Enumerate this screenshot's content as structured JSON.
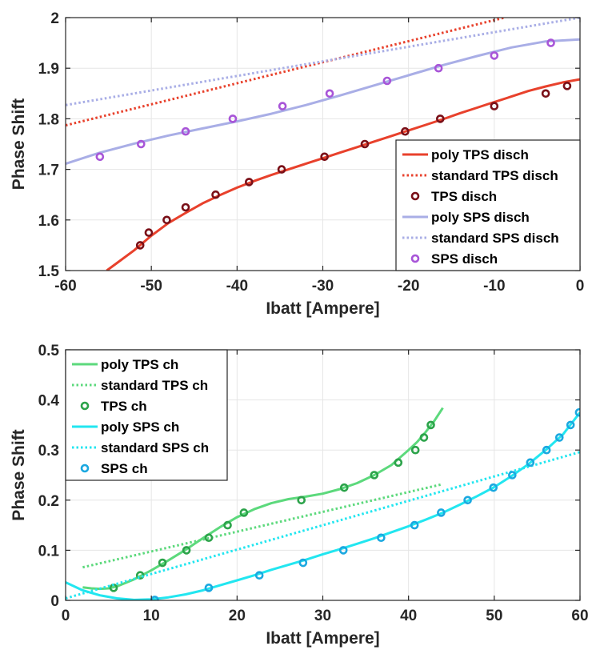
{
  "chart_data": [
    {
      "type": "line",
      "xlabel": "Ibatt [Ampere]",
      "ylabel": "Phase Shift",
      "xlim": [
        -60,
        0
      ],
      "ylim": [
        1.5,
        2.0
      ],
      "xticks": [
        -60,
        -50,
        -40,
        -30,
        -20,
        -10,
        0
      ],
      "yticks": [
        1.5,
        1.6,
        1.7,
        1.8,
        1.9,
        2.0
      ],
      "xtick_labels": [
        "-60",
        "-50",
        "-40",
        "-30",
        "-20",
        "-10",
        "0"
      ],
      "ytick_labels": [
        "1.5",
        "1.6",
        "1.7",
        "1.8",
        "1.9",
        "2"
      ],
      "grid": true,
      "legend_position": "bottom-right",
      "series": [
        {
          "name": "poly TPS disch",
          "kind": "line",
          "style": "solid",
          "color": "#e8412c",
          "x": [
            -55.2,
            -54,
            -52,
            -50,
            -48,
            -46,
            -44,
            -42,
            -40,
            -38,
            -36,
            -34,
            -32,
            -30,
            -28,
            -26,
            -24,
            -22,
            -20,
            -18,
            -16,
            -14,
            -12,
            -10,
            -8,
            -6,
            -4,
            -2,
            0
          ],
          "y": [
            1.5,
            1.515,
            1.54,
            1.569,
            1.594,
            1.614,
            1.633,
            1.649,
            1.664,
            1.677,
            1.689,
            1.7,
            1.711,
            1.722,
            1.733,
            1.744,
            1.755,
            1.766,
            1.777,
            1.788,
            1.799,
            1.811,
            1.822,
            1.833,
            1.844,
            1.855,
            1.864,
            1.872,
            1.878
          ]
        },
        {
          "name": "standard TPS disch",
          "kind": "line",
          "style": "dotted",
          "color": "#e8412c",
          "x": [
            -60,
            -8.8
          ],
          "y": [
            1.787,
            2.0
          ]
        },
        {
          "name": "TPS disch",
          "kind": "markers",
          "color": "#7a1018",
          "x": [
            -51.3,
            -50.3,
            -48.2,
            -46,
            -42.5,
            -38.6,
            -34.8,
            -29.8,
            -25.1,
            -20.4,
            -16.3,
            -10,
            -4,
            -1.5
          ],
          "y": [
            1.55,
            1.575,
            1.6,
            1.625,
            1.65,
            1.675,
            1.7,
            1.725,
            1.75,
            1.775,
            1.8,
            1.825,
            1.85,
            1.865
          ]
        },
        {
          "name": "poly SPS disch",
          "kind": "line",
          "style": "solid",
          "color": "#a9aee6",
          "x": [
            -60,
            -56,
            -52,
            -48,
            -44,
            -40,
            -36,
            -32,
            -28,
            -24,
            -20,
            -16,
            -12,
            -8,
            -4,
            0
          ],
          "y": [
            1.711,
            1.733,
            1.751,
            1.767,
            1.781,
            1.795,
            1.81,
            1.827,
            1.846,
            1.866,
            1.886,
            1.906,
            1.924,
            1.941,
            1.953,
            1.957
          ]
        },
        {
          "name": "standard SPS disch",
          "kind": "line",
          "style": "dotted",
          "color": "#a9aee6",
          "x": [
            -60,
            0
          ],
          "y": [
            1.827,
            2.0
          ]
        },
        {
          "name": "SPS disch",
          "kind": "markers",
          "color": "#a855d8",
          "x": [
            -56,
            -51.2,
            -46,
            -40.5,
            -34.7,
            -29.2,
            -22.5,
            -16.5,
            -10,
            -3.4
          ],
          "y": [
            1.725,
            1.75,
            1.775,
            1.8,
            1.825,
            1.85,
            1.875,
            1.9,
            1.925,
            1.95
          ]
        }
      ]
    },
    {
      "type": "line",
      "xlabel": "Ibatt [Ampere]",
      "ylabel": "Phase Shift",
      "xlim": [
        0,
        60
      ],
      "ylim": [
        0,
        0.5
      ],
      "xticks": [
        0,
        10,
        20,
        30,
        40,
        50,
        60
      ],
      "yticks": [
        0,
        0.1,
        0.2,
        0.3,
        0.4,
        0.5
      ],
      "xtick_labels": [
        "0",
        "10",
        "20",
        "30",
        "40",
        "50",
        "60"
      ],
      "ytick_labels": [
        "0",
        "0.1",
        "0.2",
        "0.3",
        "0.4",
        "0.5"
      ],
      "grid": true,
      "legend_position": "top-left",
      "series": [
        {
          "name": "poly TPS ch",
          "kind": "line",
          "style": "solid",
          "color": "#5cd97c",
          "x": [
            2,
            3,
            4,
            5,
            6,
            8,
            10,
            12,
            14,
            16,
            18,
            20,
            22,
            24,
            26,
            28,
            30,
            32,
            34,
            36,
            38,
            40,
            41,
            42,
            43,
            44
          ],
          "y": [
            0.026,
            0.024,
            0.023,
            0.024,
            0.028,
            0.042,
            0.06,
            0.08,
            0.101,
            0.124,
            0.146,
            0.166,
            0.182,
            0.194,
            0.202,
            0.207,
            0.213,
            0.222,
            0.234,
            0.25,
            0.27,
            0.3,
            0.316,
            0.336,
            0.358,
            0.384
          ]
        },
        {
          "name": "standard TPS ch",
          "kind": "line",
          "style": "dotted",
          "color": "#5cd97c",
          "x": [
            2,
            44
          ],
          "y": [
            0.066,
            0.232
          ]
        },
        {
          "name": "TPS ch",
          "kind": "markers",
          "color": "#2ca34a",
          "x": [
            5.6,
            8.7,
            11.3,
            14.1,
            16.7,
            18.9,
            20.8,
            27.5,
            32.5,
            36,
            38.8,
            40.8,
            41.8,
            42.6
          ],
          "y": [
            0.025,
            0.05,
            0.075,
            0.1,
            0.125,
            0.15,
            0.175,
            0.2,
            0.225,
            0.25,
            0.275,
            0.3,
            0.325,
            0.35
          ]
        },
        {
          "name": "poly SPS ch",
          "kind": "line",
          "style": "solid",
          "color": "#22e6f0",
          "x": [
            0,
            1,
            2,
            4,
            6,
            8,
            10,
            12,
            14,
            16,
            18,
            20,
            22,
            24,
            26,
            28,
            30,
            32,
            34,
            36,
            38,
            40,
            42,
            44,
            46,
            48,
            50,
            52,
            54,
            56,
            58,
            60
          ],
          "y": [
            0.036,
            0.028,
            0.02,
            0.01,
            0.004,
            0.001,
            0.002,
            0.006,
            0.012,
            0.02,
            0.03,
            0.04,
            0.05,
            0.061,
            0.071,
            0.081,
            0.092,
            0.102,
            0.113,
            0.124,
            0.136,
            0.148,
            0.161,
            0.175,
            0.191,
            0.208,
            0.226,
            0.248,
            0.272,
            0.3,
            0.331,
            0.375
          ]
        },
        {
          "name": "standard SPS ch",
          "kind": "line",
          "style": "dotted",
          "color": "#22e6f0",
          "x": [
            0,
            60
          ],
          "y": [
            0.004,
            0.296
          ]
        },
        {
          "name": "SPS ch",
          "kind": "markers",
          "color": "#1ba8e0",
          "x": [
            10.4,
            16.7,
            22.6,
            27.7,
            32.4,
            36.8,
            40.7,
            43.8,
            46.9,
            49.9,
            52.1,
            54.2,
            56.1,
            57.6,
            58.9,
            59.9
          ],
          "y": [
            0.001,
            0.025,
            0.05,
            0.075,
            0.1,
            0.125,
            0.15,
            0.175,
            0.2,
            0.225,
            0.25,
            0.275,
            0.3,
            0.325,
            0.35,
            0.375
          ]
        }
      ]
    }
  ]
}
